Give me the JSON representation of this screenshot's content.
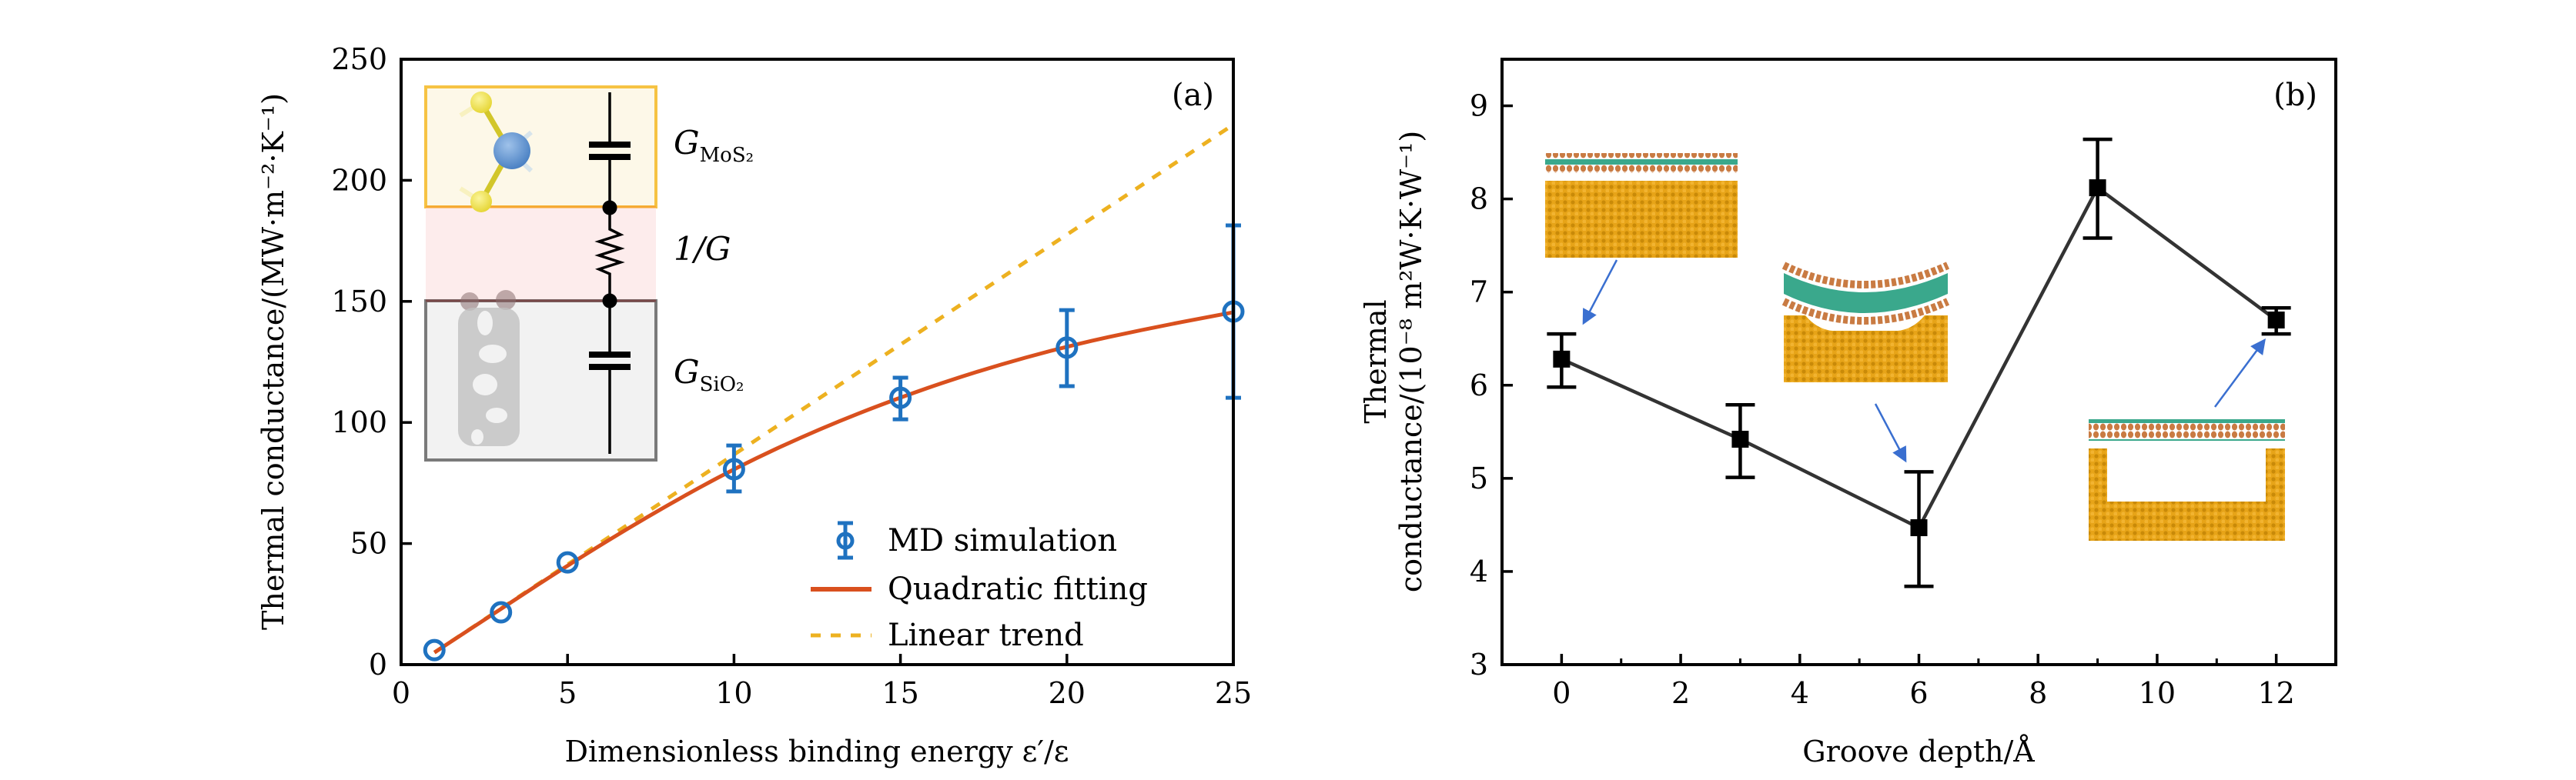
{
  "chart_data": [
    {
      "id": "a",
      "type": "scatter",
      "panel_label": "(a)",
      "title": "",
      "xlabel": "Dimensionless binding energy ε′/ε",
      "ylabel": "Thermal conductance/(MW·m⁻²·K⁻¹)",
      "xlim": [
        0,
        25
      ],
      "ylim": [
        0,
        250
      ],
      "xticks": [
        0,
        5,
        10,
        15,
        20,
        25
      ],
      "yticks": [
        0,
        50,
        100,
        150,
        200,
        250
      ],
      "grid": false,
      "legend_position": "bottom-right",
      "series": [
        {
          "name": "MD simulation",
          "kind": "errorbar-scatter",
          "color": "#1f72c0",
          "x": [
            1,
            3,
            5,
            10,
            15,
            20,
            25
          ],
          "y": [
            6,
            21.6,
            42.2,
            80.7,
            110.2,
            130.9,
            145.8
          ],
          "err_low": [
            6,
            21.6,
            42.2,
            71.5,
            101.3,
            115,
            110.2
          ],
          "err_high": [
            6,
            21.6,
            42.2,
            90.5,
            118.5,
            146.4,
            181.4
          ]
        },
        {
          "name": "Quadratic fitting",
          "kind": "line",
          "color": "#d9501e",
          "x": [
            1,
            3,
            5,
            7.5,
            10,
            12.5,
            15,
            17.5,
            20,
            22.5,
            25
          ],
          "y": [
            5,
            23,
            41,
            62,
            81,
            97,
            110.5,
            122,
            131.5,
            139,
            145.5
          ]
        },
        {
          "name": "Linear trend",
          "kind": "dashed-line",
          "color": "#edb120",
          "x": [
            1,
            25
          ],
          "y": [
            5,
            223
          ]
        }
      ],
      "inset": {
        "labels": [
          {
            "main": "G",
            "sub": "MoS₂"
          },
          {
            "main": "1/G",
            "sub": ""
          },
          {
            "main": "G",
            "sub": "SiO₂"
          }
        ],
        "colors": {
          "mos2_fill": "#fdf8e8",
          "mos2_border": "#f6c343",
          "interface_fill": "#fdecec",
          "sio2_fill": "#f2f2f2",
          "sio2_border": "#7a7a7a"
        }
      }
    },
    {
      "id": "b",
      "type": "line",
      "panel_label": "(b)",
      "title": "",
      "xlabel": "Groove depth/Å",
      "ylabel_line1": "Thermal",
      "ylabel_line2": "conductance/(10⁻⁸ m²W·K·W⁻¹)",
      "xlim": [
        -1,
        13
      ],
      "ylim": [
        3,
        9.5
      ],
      "xticks": [
        0,
        2,
        4,
        6,
        8,
        10,
        12
      ],
      "xminor": [
        1,
        3,
        5,
        7,
        9,
        11
      ],
      "yticks": [
        3,
        4,
        5,
        6,
        7,
        8,
        9
      ],
      "grid": false,
      "series": [
        {
          "name": "Thermal conductance",
          "kind": "errorbar-line",
          "color": "#000000",
          "x": [
            0,
            3,
            6,
            9,
            12
          ],
          "y": [
            6.28,
            5.42,
            4.47,
            8.12,
            6.7
          ],
          "err_low": [
            5.98,
            5.01,
            3.84,
            7.58,
            6.55
          ],
          "err_high": [
            6.55,
            5.79,
            5.07,
            8.64,
            6.83
          ]
        }
      ],
      "insets": [
        {
          "name": "flat-substrate-structure",
          "points_to_x": 0
        },
        {
          "name": "shallow-groove-structure",
          "points_to_x": 6
        },
        {
          "name": "deep-groove-structure",
          "points_to_x": 12
        }
      ],
      "colors": {
        "substrate": "#e09a10",
        "mos2_outer": "#c8783c",
        "mos2_core": "#3aa88c",
        "arrow": "#3a6fd0"
      }
    }
  ]
}
